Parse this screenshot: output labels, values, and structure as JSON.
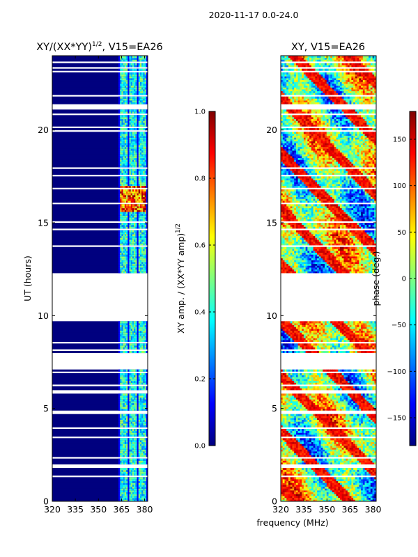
{
  "suptitle": "2020-11-17 0.0-24.0",
  "xlabel_shared": "frequency (MHz)",
  "colors": {
    "jet": [
      "#00007f",
      "#0000ff",
      "#007fff",
      "#00ffff",
      "#7fff7f",
      "#ffff00",
      "#ff7f00",
      "#ff0000",
      "#7f0000"
    ],
    "background": "#ffffff"
  },
  "chart_data": [
    {
      "type": "heatmap",
      "title_main": "XY/(XX*YY)",
      "title_sup": "1/2",
      "title_tail": ", V15=EA26",
      "xlabel": "",
      "ylabel": "UT (hours)",
      "xlim": [
        320,
        382
      ],
      "ylim": [
        0,
        24
      ],
      "xticks": [
        320,
        335,
        350,
        365,
        380
      ],
      "yticks": [
        0,
        5,
        10,
        15,
        20
      ],
      "colorbar": {
        "label_main": "XY amp. / (XX*YY amp)",
        "label_sup": "1/2",
        "range": [
          0.0,
          1.0
        ],
        "ticks": [
          "0.0",
          "0.2",
          "0.4",
          "0.6",
          "0.8",
          "1.0"
        ],
        "tick_values": [
          0.0,
          0.2,
          0.4,
          0.6,
          0.8,
          1.0
        ]
      },
      "data_gaps_hours": [
        [
          7.1,
          8.0
        ],
        [
          9.7,
          12.3
        ]
      ],
      "high_amplitude_band": {
        "freq_range": [
          364,
          381
        ],
        "time_range": [
          15.6,
          17.0
        ]
      },
      "active_freq_range": [
        363,
        382
      ]
    },
    {
      "type": "heatmap",
      "title": "XY, V15=EA26",
      "xlabel": "frequency (MHz)",
      "ylabel": "",
      "xlim": [
        320,
        382
      ],
      "ylim": [
        0,
        24
      ],
      "xticks": [
        320,
        335,
        350,
        365,
        380
      ],
      "yticks": [
        0,
        5,
        10,
        15,
        20
      ],
      "colorbar": {
        "label": "phase (deg.)",
        "range": [
          -180,
          180
        ],
        "ticks": [
          "−150",
          "−100",
          "−50",
          "0",
          "50",
          "100",
          "150"
        ],
        "tick_values": [
          -150,
          -100,
          -50,
          0,
          50,
          100,
          150
        ]
      },
      "data_gaps_hours": [
        [
          7.1,
          8.0
        ],
        [
          9.7,
          12.3
        ]
      ]
    }
  ]
}
